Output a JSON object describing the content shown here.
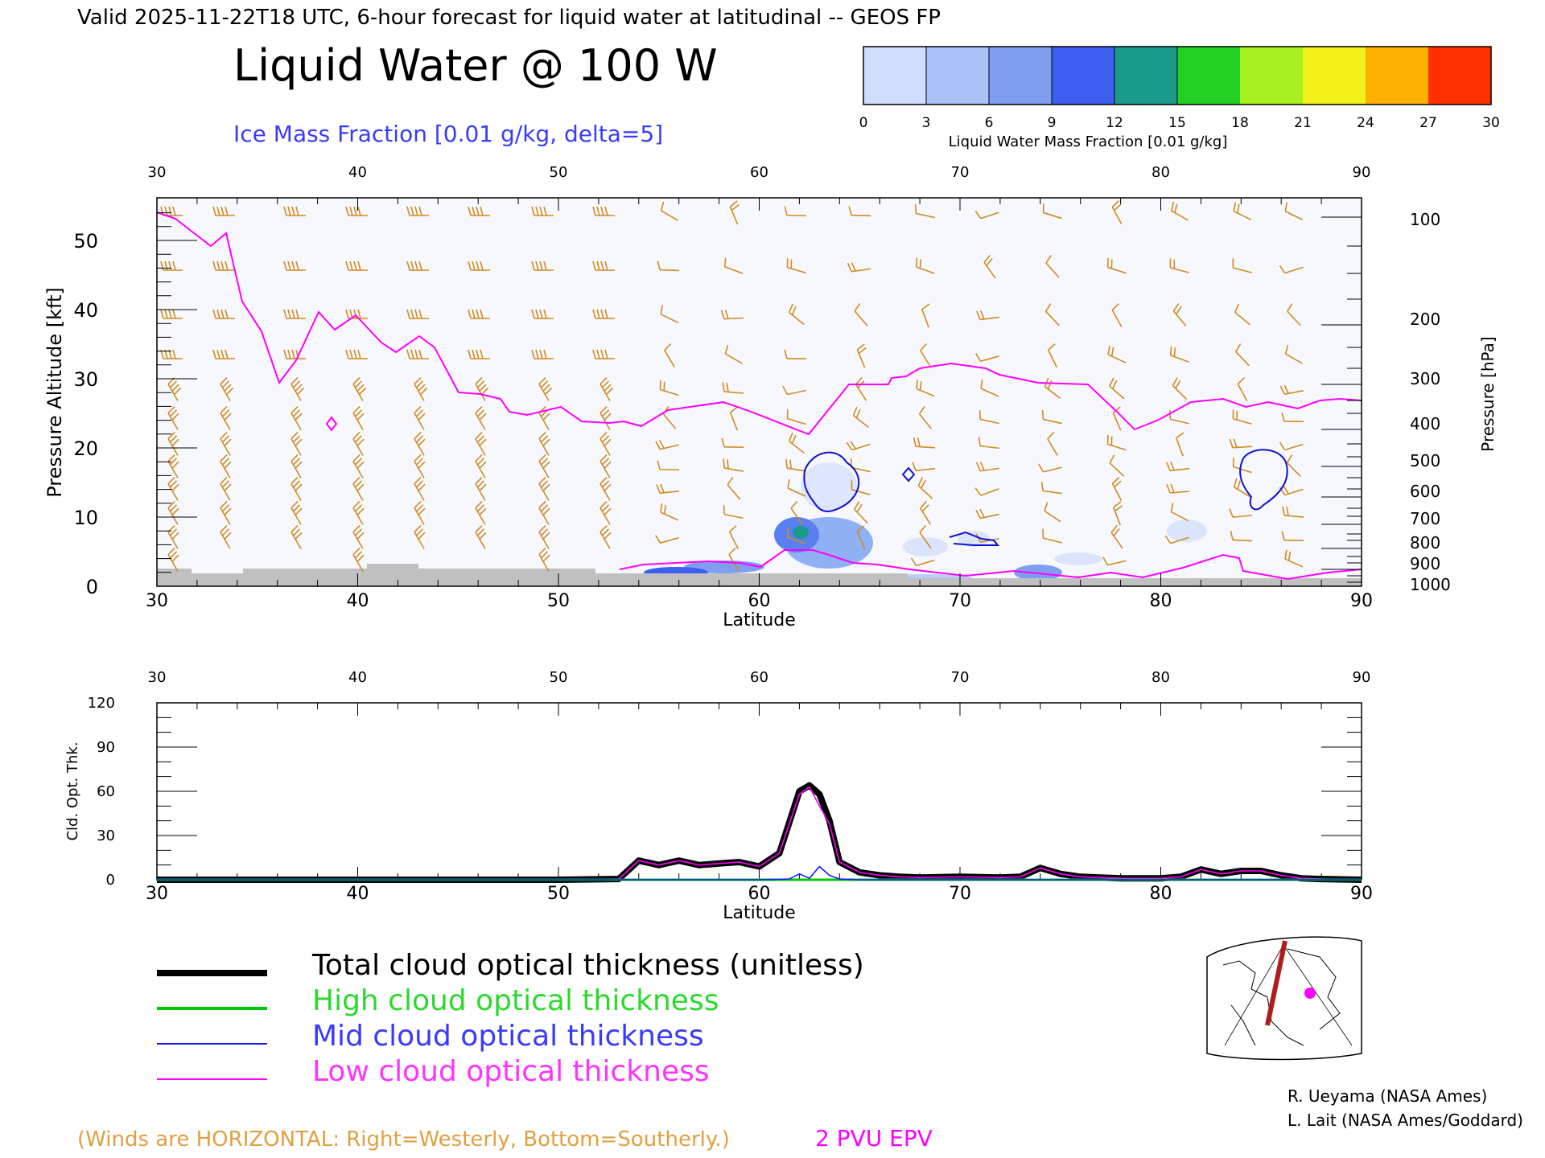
{
  "header": {
    "valid_line": "Valid 2025-11-22T18 UTC, 6-hour forecast for liquid water at latitudinal -- GEOS FP",
    "title": "Liquid Water @ 100 W",
    "subtitle": "Ice Mass Fraction [0.01 g/kg, delta=5]"
  },
  "colorbar": {
    "label": "Liquid Water Mass Fraction [0.01 g/kg]",
    "ticks": [
      "0",
      "3",
      "6",
      "9",
      "12",
      "15",
      "18",
      "21",
      "24",
      "27",
      "30"
    ],
    "colors": [
      "#f7f9ff",
      "#cfdcfb",
      "#a9c2f7",
      "#7f9ef0",
      "#3c5ff0",
      "#1a9a8a",
      "#22d022",
      "#a8f020",
      "#f2f21a",
      "#ffb000",
      "#ff3000"
    ]
  },
  "colors": {
    "wind_barbs": "#d28a20",
    "epv": "#ff00ff",
    "ice_contour": "#1010d0",
    "terrain": "#c0c0c0",
    "subtitle": "#3a3aff"
  },
  "upper_panel": {
    "top_lat_ticks": [
      "30",
      "40",
      "50",
      "60",
      "70",
      "80",
      "90"
    ],
    "bottom_lat_ticks": [
      "30",
      "40",
      "50",
      "60",
      "70",
      "80",
      "90"
    ],
    "xlabel": "Latitude",
    "ylabel_left": "Pressure Altitude [kft]",
    "ylabel_right": "Pressure [hPa]",
    "left_ticks": [
      "0",
      "10",
      "20",
      "30",
      "40",
      "50"
    ],
    "right_ticks": [
      "100",
      "200",
      "300",
      "400",
      "500",
      "600",
      "700",
      "800",
      "900",
      "1000"
    ]
  },
  "chart_data": {
    "type": "line",
    "xlabel": "Latitude",
    "ylabel": "Cld. Opt. Thk.",
    "xlim": [
      30,
      90
    ],
    "ylim": [
      0,
      120
    ],
    "x_ticks": [
      "30",
      "40",
      "50",
      "60",
      "70",
      "80",
      "90"
    ],
    "y_ticks": [
      "0",
      "30",
      "60",
      "90",
      "120"
    ],
    "series": [
      {
        "name": "Total cloud optical thickness (unitless)",
        "color": "#000000",
        "x": [
          30,
          40,
          50,
          53,
          54,
          55,
          56,
          57,
          58,
          59,
          60,
          61,
          62,
          62.5,
          63,
          63.5,
          64,
          65,
          66,
          67,
          68,
          70,
          72,
          73,
          74,
          75,
          76,
          78,
          80,
          81,
          82,
          83,
          84,
          85,
          86,
          87,
          88,
          90
        ],
        "y": [
          0,
          0,
          0,
          0.5,
          13,
          10,
          13,
          10,
          11,
          12,
          9,
          18,
          60,
          64,
          58,
          40,
          12,
          5,
          3,
          2,
          1.5,
          2,
          1.5,
          2,
          8,
          4,
          2,
          1,
          1,
          2,
          7,
          4,
          6,
          6,
          3,
          1,
          0.5,
          0
        ]
      },
      {
        "name": "High cloud optical thickness",
        "color": "#00c800",
        "x": [
          30,
          50,
          60,
          70,
          80,
          90
        ],
        "y": [
          0,
          0,
          0,
          0,
          0,
          0
        ]
      },
      {
        "name": "Mid cloud optical thickness",
        "color": "#1a1aff",
        "x": [
          30,
          60,
          61.5,
          62,
          62.5,
          63,
          63.5,
          64,
          65,
          90
        ],
        "y": [
          0,
          0,
          0.5,
          4,
          1,
          9,
          3,
          0.5,
          0,
          0
        ]
      },
      {
        "name": "Low cloud optical thickness",
        "color": "#ff00ff",
        "x": [
          30,
          40,
          50,
          53,
          54,
          55,
          56,
          57,
          58,
          59,
          60,
          61,
          62,
          62.5,
          63,
          63.5,
          64,
          65,
          66,
          67,
          68,
          70,
          72,
          73,
          74,
          75,
          76,
          78,
          80,
          81,
          82,
          83,
          84,
          85,
          86,
          87,
          88,
          90
        ],
        "y": [
          0,
          0,
          0,
          0.5,
          13,
          10,
          13,
          10,
          11,
          12,
          9,
          18,
          58,
          63,
          50,
          38,
          12,
          5,
          3,
          2,
          1.5,
          2,
          1.5,
          2,
          8,
          4,
          2,
          1,
          1,
          2,
          7,
          4,
          6,
          6,
          3,
          1,
          0.5,
          0
        ]
      }
    ]
  },
  "legend": {
    "total": "Total cloud optical thickness (unitless)",
    "high": "High cloud optical thickness",
    "mid": "Mid cloud optical thickness",
    "low": "Low cloud optical thickness"
  },
  "footer": {
    "winds_note": "(Winds are HORIZONTAL: Right=Westerly, Bottom=Southerly.)",
    "epv_label": "2 PVU EPV",
    "credit1": "R. Ueyama (NASA Ames)",
    "credit2": "L. Lait (NASA Ames/Goddard)"
  }
}
